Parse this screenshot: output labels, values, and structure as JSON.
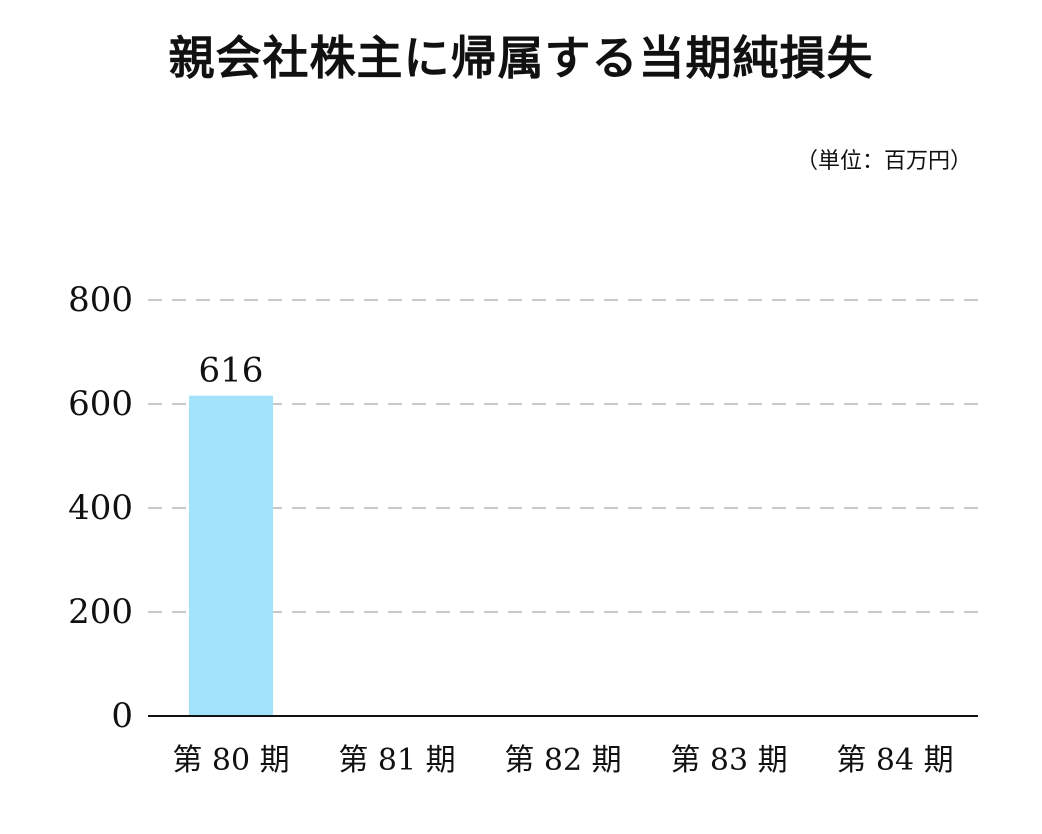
{
  "chart_data": {
    "type": "bar",
    "title": "親会社株主に帰属する当期純損失",
    "unit_note": "（単位：百万円）",
    "categories": [
      "第 80 期",
      "第 81 期",
      "第 82 期",
      "第 83 期",
      "第 84 期"
    ],
    "values": [
      616,
      null,
      null,
      null,
      null
    ],
    "value_labels": [
      "616",
      "",
      "",
      "",
      ""
    ],
    "yticks": [
      0,
      200,
      400,
      600,
      800
    ],
    "ytick_labels": [
      "0",
      "200",
      "400",
      "600",
      "800"
    ],
    "ylim": [
      0,
      800
    ],
    "xlabel": "",
    "ylabel": "",
    "grid": true,
    "legend": "none",
    "colors": {
      "bar": "#a3e2fb",
      "grid": "#c8c8c8",
      "axis": "#111111",
      "text": "#111111"
    }
  }
}
